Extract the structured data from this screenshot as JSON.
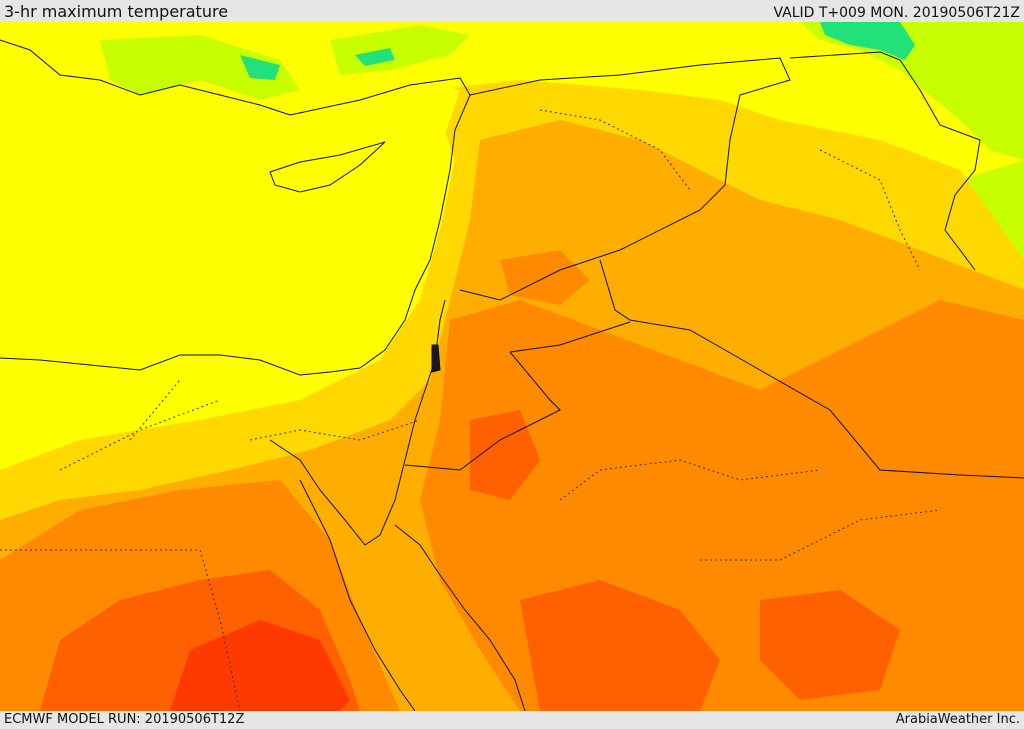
{
  "header": {
    "title": "3-hr maximum temperature",
    "valid": "VALID T+009 MON. 20190506T21Z"
  },
  "footer": {
    "model_run": "ECMWF MODEL RUN: 20190506T12Z",
    "credit": "ArabiaWeather Inc."
  },
  "palette": {
    "green": "#22e07a",
    "lime": "#c8ff00",
    "yellow": "#ffff00",
    "gold": "#ffd800",
    "amber": "#ffae00",
    "orange": "#ff8a00",
    "dark_orange": "#ff6000",
    "red": "#ff3a00",
    "border": "#111111"
  }
}
